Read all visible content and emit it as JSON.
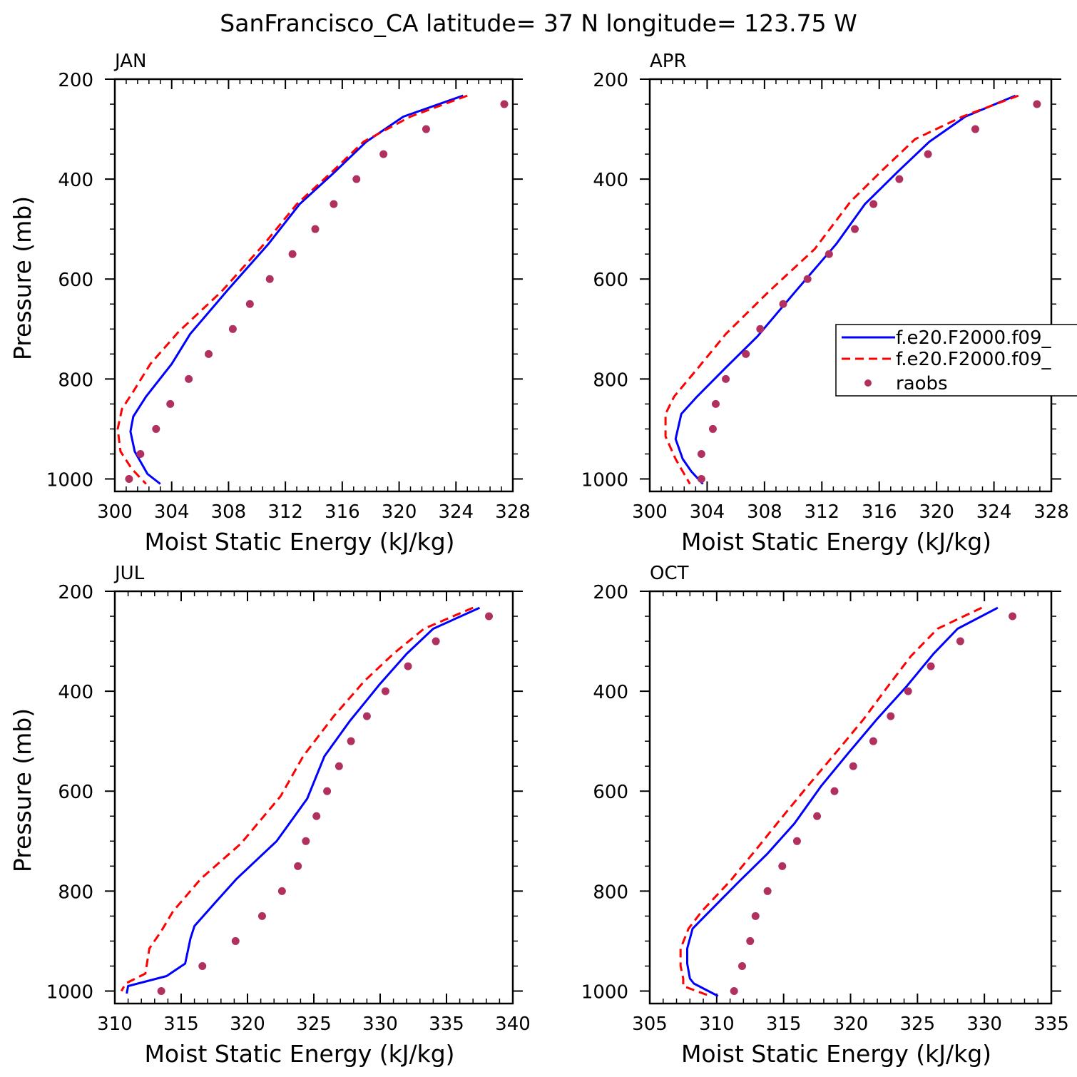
{
  "title": "SanFrancisco_CA  latitude= 37 N longitude= 123.75 W",
  "colors": {
    "model_1": "#0000ff",
    "model_2": "#ff0000",
    "raobs": "#b03060"
  },
  "legend": {
    "entries": [
      "f.e20.F2000.f09_",
      "f.e20.F2000.f09_",
      "raobs"
    ],
    "placement": "right edge, inside APR panel"
  },
  "chart_data": [
    {
      "type": "line",
      "panel": "JAN",
      "xlabel": "Moist Static Energy (kJ/kg)",
      "ylabel": "Pressure (mb)",
      "xlim": [
        300,
        328
      ],
      "ylim": [
        1025,
        200
      ],
      "x_ticks": [
        300,
        304,
        308,
        312,
        316,
        320,
        324,
        328
      ],
      "y_ticks": [
        200,
        400,
        600,
        800,
        1000
      ],
      "series": [
        {
          "name": "f.e20.F2000.f09_",
          "style": "solid",
          "color": "#0000ff",
          "points": [
            [
              324.5,
              233
            ],
            [
              320.3,
              275
            ],
            [
              317.7,
              325
            ],
            [
              315.5,
              385
            ],
            [
              313.0,
              450
            ],
            [
              310.8,
              530
            ],
            [
              308.0,
              620
            ],
            [
              305.3,
              710
            ],
            [
              304.0,
              770
            ],
            [
              302.2,
              835
            ],
            [
              301.3,
              875
            ],
            [
              301.1,
              905
            ],
            [
              301.4,
              945
            ],
            [
              302.3,
              990
            ],
            [
              303.2,
              1010
            ]
          ]
        },
        {
          "name": "f.e20.F2000.f09_",
          "style": "dashed",
          "color": "#ff0000",
          "points": [
            [
              324.8,
              233
            ],
            [
              320.8,
              275
            ],
            [
              317.5,
              325
            ],
            [
              315.3,
              385
            ],
            [
              312.8,
              450
            ],
            [
              310.5,
              530
            ],
            [
              307.5,
              625
            ],
            [
              304.5,
              705
            ],
            [
              302.5,
              770
            ],
            [
              301.3,
              825
            ],
            [
              300.5,
              860
            ],
            [
              300.2,
              900
            ],
            [
              300.4,
              945
            ],
            [
              301.2,
              980
            ],
            [
              302.2,
              1010
            ]
          ]
        },
        {
          "name": "raobs",
          "style": "dots",
          "color": "#b03060",
          "points": [
            [
              327.4,
              250
            ],
            [
              321.9,
              300
            ],
            [
              318.9,
              350
            ],
            [
              317.0,
              400
            ],
            [
              315.4,
              450
            ],
            [
              314.1,
              500
            ],
            [
              312.5,
              550
            ],
            [
              310.9,
              600
            ],
            [
              309.5,
              650
            ],
            [
              308.3,
              700
            ],
            [
              306.6,
              750
            ],
            [
              305.2,
              800
            ],
            [
              303.9,
              850
            ],
            [
              302.9,
              900
            ],
            [
              301.8,
              950
            ],
            [
              301.0,
              1000
            ]
          ]
        }
      ]
    },
    {
      "type": "line",
      "panel": "APR",
      "xlabel": "Moist Static Energy (kJ/kg)",
      "ylabel": "",
      "xlim": [
        300,
        328
      ],
      "ylim": [
        1025,
        200
      ],
      "x_ticks": [
        300,
        304,
        308,
        312,
        316,
        320,
        324,
        328
      ],
      "y_ticks": [
        200,
        400,
        600,
        800,
        1000
      ],
      "series": [
        {
          "name": "f.e20.F2000.f09_",
          "style": "solid",
          "color": "#0000ff",
          "points": [
            [
              325.5,
              233
            ],
            [
              322.0,
              275
            ],
            [
              319.5,
              325
            ],
            [
              317.3,
              385
            ],
            [
              315.0,
              450
            ],
            [
              313.0,
              530
            ],
            [
              310.3,
              620
            ],
            [
              307.5,
              715
            ],
            [
              305.2,
              780
            ],
            [
              303.3,
              835
            ],
            [
              302.2,
              870
            ],
            [
              301.8,
              920
            ],
            [
              302.3,
              960
            ],
            [
              302.9,
              985
            ],
            [
              303.7,
              1010
            ]
          ]
        },
        {
          "name": "f.e20.F2000.f09_",
          "style": "dashed",
          "color": "#ff0000",
          "points": [
            [
              325.7,
              233
            ],
            [
              321.8,
              275
            ],
            [
              318.5,
              320
            ],
            [
              316.3,
              380
            ],
            [
              314.0,
              445
            ],
            [
              311.5,
              540
            ],
            [
              308.3,
              625
            ],
            [
              305.3,
              710
            ],
            [
              303.3,
              780
            ],
            [
              301.7,
              835
            ],
            [
              301.1,
              870
            ],
            [
              301.1,
              915
            ],
            [
              301.8,
              960
            ],
            [
              302.3,
              985
            ],
            [
              302.8,
              1010
            ]
          ]
        },
        {
          "name": "raobs",
          "style": "dots",
          "color": "#b03060",
          "points": [
            [
              327.0,
              250
            ],
            [
              322.7,
              300
            ],
            [
              319.4,
              350
            ],
            [
              317.4,
              400
            ],
            [
              315.6,
              450
            ],
            [
              314.3,
              500
            ],
            [
              312.5,
              550
            ],
            [
              311.0,
              600
            ],
            [
              309.3,
              650
            ],
            [
              307.7,
              700
            ],
            [
              306.7,
              750
            ],
            [
              305.3,
              800
            ],
            [
              304.6,
              850
            ],
            [
              304.4,
              900
            ],
            [
              303.6,
              950
            ],
            [
              303.6,
              1000
            ]
          ]
        }
      ]
    },
    {
      "type": "line",
      "panel": "JUL",
      "xlabel": "Moist Static Energy (kJ/kg)",
      "ylabel": "Pressure (mb)",
      "xlim": [
        310,
        340
      ],
      "ylim": [
        1025,
        200
      ],
      "x_ticks": [
        310,
        315,
        320,
        325,
        330,
        335,
        340
      ],
      "y_ticks": [
        200,
        400,
        600,
        800,
        1000
      ],
      "series": [
        {
          "name": "f.e20.F2000.f09_",
          "style": "solid",
          "color": "#0000ff",
          "points": [
            [
              337.5,
              233
            ],
            [
              334.0,
              275
            ],
            [
              332.0,
              325
            ],
            [
              330.0,
              385
            ],
            [
              327.7,
              460
            ],
            [
              325.8,
              530
            ],
            [
              324.5,
              615
            ],
            [
              322.2,
              700
            ],
            [
              319.2,
              775
            ],
            [
              317.5,
              825
            ],
            [
              316.0,
              870
            ],
            [
              315.7,
              895
            ],
            [
              315.3,
              945
            ],
            [
              313.9,
              970
            ],
            [
              311.0,
              990
            ],
            [
              310.9,
              1005
            ]
          ]
        },
        {
          "name": "f.e20.F2000.f09_",
          "style": "dashed",
          "color": "#ff0000",
          "points": [
            [
              337.0,
              233
            ],
            [
              333.3,
              275
            ],
            [
              331.0,
              325
            ],
            [
              328.8,
              380
            ],
            [
              326.5,
              450
            ],
            [
              324.2,
              530
            ],
            [
              322.5,
              610
            ],
            [
              319.5,
              705
            ],
            [
              316.5,
              775
            ],
            [
              314.4,
              840
            ],
            [
              313.5,
              880
            ],
            [
              312.6,
              915
            ],
            [
              312.3,
              965
            ],
            [
              310.8,
              985
            ],
            [
              310.5,
              1000
            ]
          ]
        },
        {
          "name": "raobs",
          "style": "dots",
          "color": "#b03060",
          "points": [
            [
              338.2,
              250
            ],
            [
              334.2,
              300
            ],
            [
              332.1,
              350
            ],
            [
              330.4,
              400
            ],
            [
              329.0,
              450
            ],
            [
              327.8,
              500
            ],
            [
              326.9,
              550
            ],
            [
              326.0,
              600
            ],
            [
              325.2,
              650
            ],
            [
              324.4,
              700
            ],
            [
              323.8,
              750
            ],
            [
              322.6,
              800
            ],
            [
              321.1,
              850
            ],
            [
              319.1,
              900
            ],
            [
              316.6,
              950
            ],
            [
              313.5,
              1000
            ]
          ]
        }
      ]
    },
    {
      "type": "line",
      "panel": "OCT",
      "xlabel": "Moist Static Energy (kJ/kg)",
      "ylabel": "",
      "xlim": [
        305,
        335
      ],
      "ylim": [
        1025,
        200
      ],
      "x_ticks": [
        305,
        310,
        315,
        320,
        325,
        330,
        335
      ],
      "y_ticks": [
        200,
        400,
        600,
        800,
        1000
      ],
      "series": [
        {
          "name": "f.e20.F2000.f09_",
          "style": "solid",
          "color": "#0000ff",
          "points": [
            [
              331.0,
              233
            ],
            [
              328.0,
              275
            ],
            [
              326.2,
              325
            ],
            [
              324.2,
              390
            ],
            [
              322.0,
              455
            ],
            [
              319.8,
              525
            ],
            [
              317.8,
              590
            ],
            [
              315.8,
              665
            ],
            [
              313.8,
              725
            ],
            [
              311.7,
              780
            ],
            [
              309.3,
              845
            ],
            [
              308.2,
              875
            ],
            [
              307.8,
              915
            ],
            [
              307.8,
              945
            ],
            [
              308.0,
              975
            ],
            [
              308.3,
              985
            ],
            [
              310.1,
              1010
            ]
          ]
        },
        {
          "name": "f.e20.F2000.f09_",
          "style": "dashed",
          "color": "#ff0000",
          "points": [
            [
              329.8,
              233
            ],
            [
              326.5,
              275
            ],
            [
              324.5,
              330
            ],
            [
              322.8,
              390
            ],
            [
              321.0,
              455
            ],
            [
              319.0,
              520
            ],
            [
              316.8,
              590
            ],
            [
              314.8,
              655
            ],
            [
              313.0,
              715
            ],
            [
              311.0,
              780
            ],
            [
              308.9,
              840
            ],
            [
              307.9,
              875
            ],
            [
              307.3,
              915
            ],
            [
              307.3,
              950
            ],
            [
              307.5,
              975
            ],
            [
              307.5,
              990
            ],
            [
              309.5,
              1010
            ]
          ]
        },
        {
          "name": "raobs",
          "style": "dots",
          "color": "#b03060",
          "points": [
            [
              332.1,
              250
            ],
            [
              328.2,
              300
            ],
            [
              326.0,
              350
            ],
            [
              324.3,
              400
            ],
            [
              323.0,
              450
            ],
            [
              321.7,
              500
            ],
            [
              320.2,
              550
            ],
            [
              318.8,
              600
            ],
            [
              317.5,
              650
            ],
            [
              316.0,
              700
            ],
            [
              314.9,
              750
            ],
            [
              313.8,
              800
            ],
            [
              312.9,
              850
            ],
            [
              312.5,
              900
            ],
            [
              311.9,
              950
            ],
            [
              311.3,
              1000
            ]
          ]
        }
      ]
    }
  ]
}
